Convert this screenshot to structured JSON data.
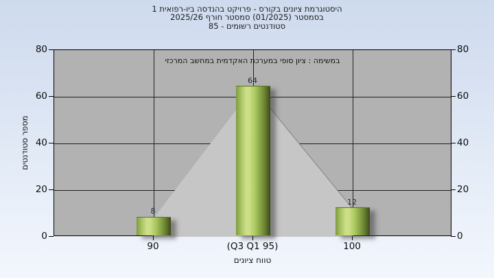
{
  "header": {
    "line1": "היסטוגרמת ציונים בקורס - פרויקט בהנדסה ביו-רפואית 1",
    "line2": "בסמסטר  (01/2025)  סמסטר חורף 2025/26",
    "line3": "סטודנטים רשומים - 85"
  },
  "chart_data": {
    "type": "bar",
    "note": "במשימה : ציון סופי במערכת האקדמית במחשב המרכזי",
    "categories": [
      "90",
      "(Q3 Q1 95)",
      "100"
    ],
    "values": [
      8,
      64,
      12
    ],
    "xlabel": "טווח ציונים",
    "ylabel": "מספר סטודנטים",
    "ylim": [
      0,
      80
    ],
    "yticks": [
      0,
      20,
      40,
      60,
      80
    ],
    "grid": true,
    "legend": "none",
    "overlay": "gray area polygon connecting bar tops, drawn behind bars",
    "colors": {
      "page_bg_top": "#cedbee",
      "page_bg_bottom": "#f2f6fd",
      "plot_bg": "#b2b2b2",
      "wedge": "#c6c6c6",
      "gridline": "#1f1f1f",
      "bar_light": "#cde089",
      "bar_dark": "#3c4a1b",
      "connector_line": "#838383",
      "text": "#1b1b1b"
    }
  }
}
